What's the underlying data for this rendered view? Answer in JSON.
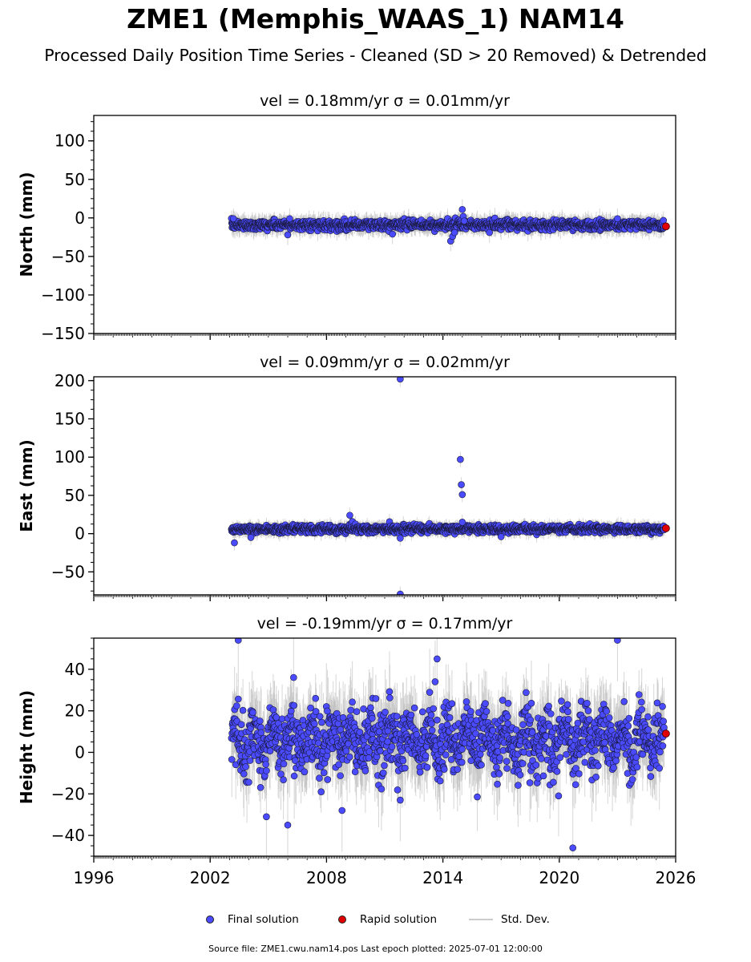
{
  "page": {
    "title": "ZME1 (Memphis_WAAS_1) NAM14",
    "subtitle": "Processed Daily Position Time Series - Cleaned (SD > 20 Removed) & Detrended",
    "footer": "Source file: ZME1.cwu.nam14.pos  Last epoch plotted: 2025-07-01 12:00:00"
  },
  "legend": {
    "items": [
      {
        "label": "Final solution",
        "color": "#4a4aff"
      },
      {
        "label": "Rapid solution",
        "color": "#e00000"
      },
      {
        "label": "Std. Dev.",
        "color": "#cccccc"
      }
    ]
  },
  "chart_data": [
    {
      "type": "scatter",
      "component": "north",
      "title": "vel = 0.18mm/yr   σ = 0.01mm/yr",
      "ylabel": "North (mm)",
      "xlim": [
        1996,
        2026
      ],
      "ylim": [
        -150,
        133
      ],
      "yticks": [
        -150,
        -100,
        -50,
        0,
        50,
        100
      ],
      "ytick_labels": [
        "−150",
        "−100",
        "−50",
        "0",
        "50",
        "100"
      ],
      "final_solution": {
        "x_range": [
          2003.1,
          2025.4
        ],
        "mean": -9,
        "sd": 3,
        "err": 4,
        "outliers": [
          {
            "x": 2003.2,
            "y": -1
          },
          {
            "x": 2006.0,
            "y": -22
          },
          {
            "x": 2006.1,
            "y": -1
          },
          {
            "x": 2011.4,
            "y": -21
          },
          {
            "x": 2014.4,
            "y": -30
          },
          {
            "x": 2014.5,
            "y": -24
          },
          {
            "x": 2014.6,
            "y": -19
          },
          {
            "x": 2015.0,
            "y": 11
          },
          {
            "x": 2015.05,
            "y": 2
          },
          {
            "x": 2015.1,
            "y": -4
          },
          {
            "x": 2016.4,
            "y": -19
          },
          {
            "x": 2023.0,
            "y": -1
          }
        ]
      },
      "rapid_solution": [
        {
          "x": 2025.5,
          "y": -11
        }
      ]
    },
    {
      "type": "scatter",
      "component": "east",
      "title": "vel = 0.09mm/yr   σ = 0.02mm/yr",
      "ylabel": "East (mm)",
      "xlim": [
        1996,
        2026
      ],
      "ylim": [
        -80,
        205
      ],
      "yticks": [
        -50,
        0,
        50,
        100,
        150,
        200
      ],
      "ytick_labels": [
        "−50",
        "0",
        "50",
        "100",
        "150",
        "200"
      ],
      "final_solution": {
        "x_range": [
          2003.1,
          2025.4
        ],
        "mean": 6,
        "sd": 2.5,
        "err": 3,
        "outliers": [
          {
            "x": 2003.25,
            "y": -12
          },
          {
            "x": 2009.2,
            "y": 24
          },
          {
            "x": 2011.8,
            "y": 202
          },
          {
            "x": 2011.8,
            "y": -79
          },
          {
            "x": 2011.8,
            "y": -6
          },
          {
            "x": 2014.9,
            "y": 97
          },
          {
            "x": 2014.95,
            "y": 64
          },
          {
            "x": 2015.0,
            "y": 51
          },
          {
            "x": 2015.0,
            "y": 15
          },
          {
            "x": 2004.1,
            "y": -5
          },
          {
            "x": 2017.0,
            "y": -4
          }
        ]
      },
      "rapid_solution": [
        {
          "x": 2025.5,
          "y": 7
        }
      ]
    },
    {
      "type": "scatter",
      "component": "height",
      "title": "vel = -0.19mm/yr   σ = 0.17mm/yr",
      "ylabel": "Height (mm)",
      "xlim": [
        1996,
        2026
      ],
      "xticks": [
        1996,
        2002,
        2008,
        2014,
        2020,
        2026
      ],
      "xtick_labels": [
        "1996",
        "2002",
        "2008",
        "2014",
        "2020",
        "2026"
      ],
      "ylim": [
        -50,
        55
      ],
      "yticks": [
        -40,
        -20,
        0,
        20,
        40
      ],
      "ytick_labels": [
        "−40",
        "−20",
        "0",
        "20",
        "40"
      ],
      "final_solution": {
        "x_range": [
          2003.1,
          2025.4
        ],
        "mean": 6,
        "sd": 10,
        "err": 6,
        "outliers": [
          {
            "x": 2003.45,
            "y": 54
          },
          {
            "x": 2006.0,
            "y": -35
          },
          {
            "x": 2008.8,
            "y": -28
          },
          {
            "x": 2013.7,
            "y": 45
          },
          {
            "x": 2020.7,
            "y": -46
          },
          {
            "x": 2023.0,
            "y": 54
          },
          {
            "x": 2004.9,
            "y": -31
          },
          {
            "x": 2011.8,
            "y": -23
          },
          {
            "x": 2013.6,
            "y": 34
          }
        ]
      },
      "rapid_solution": [
        {
          "x": 2025.5,
          "y": 9
        }
      ]
    }
  ]
}
